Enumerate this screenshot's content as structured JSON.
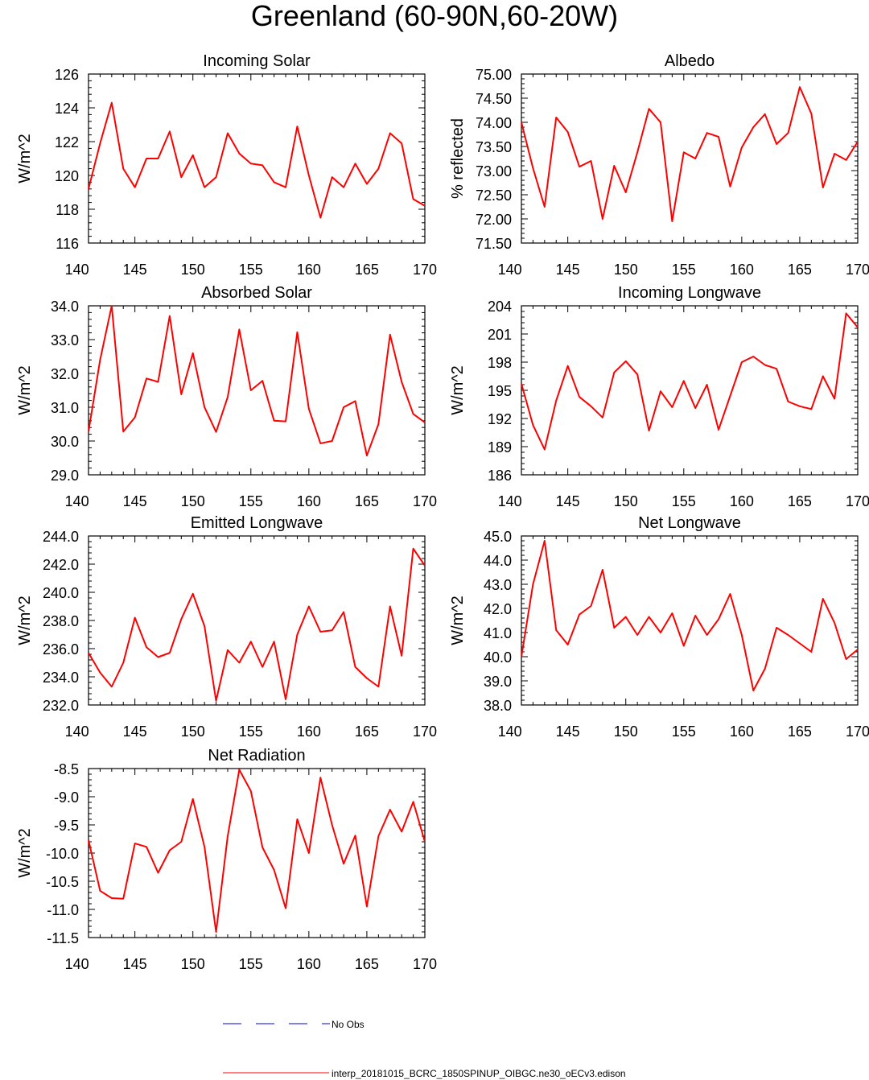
{
  "title": "Greenland (60-90N,60-20W)",
  "colors": {
    "model_line": "#ff0000",
    "obs_line": "#0000cc",
    "axis": "#000000"
  },
  "legend": {
    "obs_label": "No Obs",
    "model_label": "interp_20181015_BCRC_1850SPINUP_OIBGC.ne30_oECv3.edison"
  },
  "chart_data": [
    {
      "type": "line",
      "title": "Incoming Solar",
      "ylabel": "W/m^2",
      "xlabel": "",
      "xlim": [
        141,
        170
      ],
      "xticks": [
        140,
        145,
        150,
        155,
        160,
        165,
        170
      ],
      "ylim": [
        116,
        126
      ],
      "yticks": [
        116,
        118,
        120,
        122,
        124,
        126
      ],
      "ydecimals": 0,
      "x": [
        141,
        142,
        143,
        144,
        145,
        146,
        147,
        148,
        149,
        150,
        151,
        152,
        153,
        154,
        155,
        156,
        157,
        158,
        159,
        160,
        161,
        162,
        163,
        164,
        165,
        166,
        167,
        168,
        169,
        170
      ],
      "values": [
        119.2,
        121.9,
        124.3,
        120.4,
        119.3,
        121.0,
        121.0,
        122.6,
        119.9,
        121.2,
        119.3,
        119.9,
        122.5,
        121.3,
        120.7,
        120.6,
        119.6,
        119.3,
        122.9,
        120.0,
        117.5,
        119.9,
        119.3,
        120.7,
        119.5,
        120.4,
        122.5,
        121.9,
        118.6,
        118.2
      ]
    },
    {
      "type": "line",
      "title": "Albedo",
      "ylabel": "% reflected",
      "xlabel": "",
      "xlim": [
        141,
        170
      ],
      "xticks": [
        140,
        145,
        150,
        155,
        160,
        165,
        170
      ],
      "ylim": [
        71.5,
        75.0
      ],
      "yticks": [
        71.5,
        72.0,
        72.5,
        73.0,
        73.5,
        74.0,
        74.5,
        75.0
      ],
      "ydecimals": 2,
      "x": [
        141,
        142,
        143,
        144,
        145,
        146,
        147,
        148,
        149,
        150,
        151,
        152,
        153,
        154,
        155,
        156,
        157,
        158,
        159,
        160,
        161,
        162,
        163,
        164,
        165,
        166,
        167,
        168,
        169,
        170
      ],
      "values": [
        74.0,
        73.05,
        72.25,
        74.1,
        73.8,
        73.08,
        73.2,
        72.0,
        73.1,
        72.55,
        73.38,
        74.28,
        74.0,
        71.95,
        73.38,
        73.25,
        73.78,
        73.7,
        72.67,
        73.48,
        73.9,
        74.17,
        73.55,
        73.78,
        74.73,
        74.18,
        72.65,
        73.35,
        73.22,
        73.6
      ]
    },
    {
      "type": "line",
      "title": "Absorbed Solar",
      "ylabel": "W/m^2",
      "xlabel": "",
      "xlim": [
        141,
        170
      ],
      "xticks": [
        140,
        145,
        150,
        155,
        160,
        165,
        170
      ],
      "ylim": [
        29.0,
        34.0
      ],
      "yticks": [
        29.0,
        30.0,
        31.0,
        32.0,
        33.0,
        34.0
      ],
      "ydecimals": 1,
      "x": [
        141,
        142,
        143,
        144,
        145,
        146,
        147,
        148,
        149,
        150,
        151,
        152,
        153,
        154,
        155,
        156,
        157,
        158,
        159,
        160,
        161,
        162,
        163,
        164,
        165,
        166,
        167,
        168,
        169,
        170
      ],
      "values": [
        30.28,
        32.4,
        34.0,
        30.28,
        30.7,
        31.85,
        31.75,
        33.7,
        31.38,
        32.6,
        31.0,
        30.27,
        31.3,
        33.3,
        31.5,
        31.78,
        30.6,
        30.58,
        33.22,
        30.95,
        29.93,
        30.0,
        31.0,
        31.18,
        29.57,
        30.5,
        33.15,
        31.75,
        30.8,
        30.55
      ]
    },
    {
      "type": "line",
      "title": "Incoming Longwave",
      "ylabel": "W/m^2",
      "xlabel": "",
      "xlim": [
        141,
        170
      ],
      "xticks": [
        140,
        145,
        150,
        155,
        160,
        165,
        170
      ],
      "ylim": [
        186,
        204
      ],
      "yticks": [
        186,
        189,
        192,
        195,
        198,
        201,
        204
      ],
      "ydecimals": 0,
      "x": [
        141,
        142,
        143,
        144,
        145,
        146,
        147,
        148,
        149,
        150,
        151,
        152,
        153,
        154,
        155,
        156,
        157,
        158,
        159,
        160,
        161,
        162,
        163,
        164,
        165,
        166,
        167,
        168,
        169,
        170
      ],
      "values": [
        195.7,
        191.3,
        188.7,
        193.9,
        197.6,
        194.3,
        193.3,
        192.1,
        196.9,
        198.1,
        196.7,
        190.7,
        194.9,
        193.2,
        196.0,
        193.1,
        195.6,
        190.8,
        194.4,
        198.0,
        198.6,
        197.7,
        197.3,
        193.8,
        193.3,
        193.0,
        196.5,
        194.1,
        203.2,
        201.7
      ]
    },
    {
      "type": "line",
      "title": "Emitted Longwave",
      "ylabel": "W/m^2",
      "xlabel": "",
      "xlim": [
        141,
        170
      ],
      "xticks": [
        140,
        145,
        150,
        155,
        160,
        165,
        170
      ],
      "ylim": [
        232.0,
        244.0
      ],
      "yticks": [
        232.0,
        234.0,
        236.0,
        238.0,
        240.0,
        242.0,
        244.0
      ],
      "ydecimals": 1,
      "x": [
        141,
        142,
        143,
        144,
        145,
        146,
        147,
        148,
        149,
        150,
        151,
        152,
        153,
        154,
        155,
        156,
        157,
        158,
        159,
        160,
        161,
        162,
        163,
        164,
        165,
        166,
        167,
        168,
        169,
        170
      ],
      "values": [
        235.7,
        234.3,
        233.3,
        235.0,
        238.2,
        236.1,
        235.4,
        235.7,
        238.1,
        239.9,
        237.6,
        232.3,
        235.9,
        235.0,
        236.5,
        234.7,
        236.5,
        232.4,
        237.0,
        239.0,
        237.2,
        237.3,
        238.6,
        234.7,
        233.9,
        233.3,
        239.0,
        235.5,
        243.1,
        241.9
      ]
    },
    {
      "type": "line",
      "title": "Net Longwave",
      "ylabel": "W/m^2",
      "xlabel": "",
      "xlim": [
        141,
        170
      ],
      "xticks": [
        140,
        145,
        150,
        155,
        160,
        165,
        170
      ],
      "ylim": [
        38.0,
        45.0
      ],
      "yticks": [
        38.0,
        39.0,
        40.0,
        41.0,
        42.0,
        43.0,
        44.0,
        45.0
      ],
      "ydecimals": 1,
      "x": [
        141,
        142,
        143,
        144,
        145,
        146,
        147,
        148,
        149,
        150,
        151,
        152,
        153,
        154,
        155,
        156,
        157,
        158,
        159,
        160,
        161,
        162,
        163,
        164,
        165,
        166,
        167,
        168,
        169,
        170
      ],
      "values": [
        40.0,
        43.0,
        44.8,
        41.1,
        40.5,
        41.75,
        42.1,
        43.6,
        41.2,
        41.65,
        40.9,
        41.65,
        41.0,
        41.8,
        40.45,
        41.7,
        40.9,
        41.55,
        42.6,
        40.9,
        38.6,
        39.5,
        41.2,
        40.9,
        40.55,
        40.2,
        42.4,
        41.4,
        39.9,
        40.3
      ]
    },
    {
      "type": "line",
      "title": "Net Radiation",
      "ylabel": "W/m^2",
      "xlabel": "",
      "xlim": [
        141,
        170
      ],
      "xticks": [
        140,
        145,
        150,
        155,
        160,
        165,
        170
      ],
      "ylim": [
        -11.5,
        -8.5
      ],
      "yticks": [
        -11.5,
        -11.0,
        -10.5,
        -10.0,
        -9.5,
        -9.0,
        -8.5
      ],
      "ydecimals": 1,
      "x": [
        141,
        142,
        143,
        144,
        145,
        146,
        147,
        148,
        149,
        150,
        151,
        152,
        153,
        154,
        155,
        156,
        157,
        158,
        159,
        160,
        161,
        162,
        163,
        164,
        165,
        166,
        167,
        168,
        169,
        170
      ],
      "values": [
        -9.77,
        -10.67,
        -10.8,
        -10.81,
        -9.83,
        -9.89,
        -10.35,
        -9.95,
        -9.8,
        -9.04,
        -9.89,
        -11.4,
        -9.7,
        -8.52,
        -8.9,
        -9.9,
        -10.3,
        -10.98,
        -9.4,
        -10.0,
        -8.66,
        -9.5,
        -10.19,
        -9.69,
        -10.95,
        -9.7,
        -9.23,
        -9.62,
        -9.09,
        -9.8
      ]
    }
  ]
}
